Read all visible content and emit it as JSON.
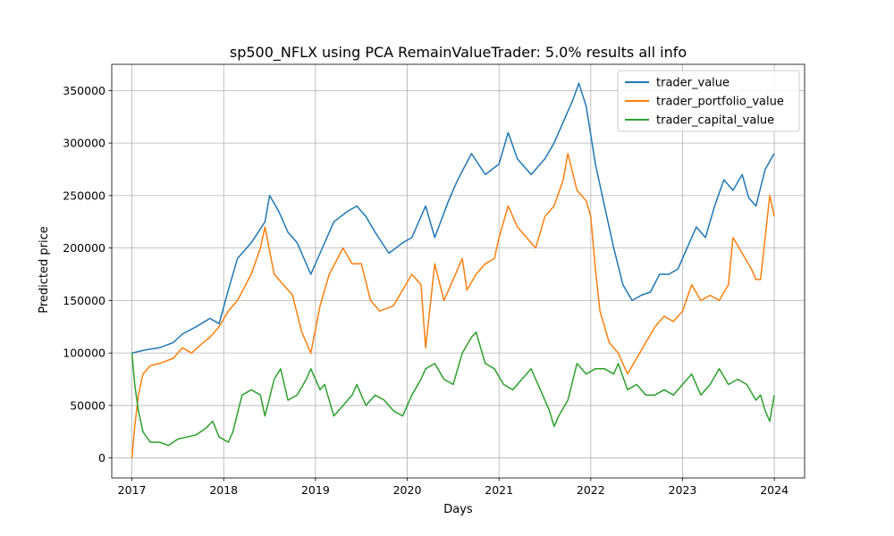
{
  "chart_data": {
    "type": "line",
    "title": "sp500_NFLX using PCA RemainValueTrader: 5.0% results all info",
    "xlabel": "Days",
    "ylabel": "Predicted price",
    "xlim": [
      2016.78,
      2024.33
    ],
    "ylim": [
      -19000,
      375000
    ],
    "xticks": [
      2017,
      2018,
      2019,
      2020,
      2021,
      2022,
      2023,
      2024
    ],
    "xtick_labels": [
      "2017",
      "2018",
      "2019",
      "2020",
      "2021",
      "2022",
      "2023",
      "2024"
    ],
    "yticks": [
      0,
      50000,
      100000,
      150000,
      200000,
      250000,
      300000,
      350000
    ],
    "ytick_labels": [
      "0",
      "50000",
      "100000",
      "150000",
      "200000",
      "250000",
      "300000",
      "350000"
    ],
    "grid": true,
    "legend_position": "top-right",
    "series": [
      {
        "name": "trader_value",
        "color": "#1f77b4",
        "points": [
          [
            2017.0,
            100000
          ],
          [
            2017.15,
            103000
          ],
          [
            2017.3,
            105000
          ],
          [
            2017.45,
            110000
          ],
          [
            2017.55,
            118000
          ],
          [
            2017.7,
            125000
          ],
          [
            2017.85,
            133000
          ],
          [
            2017.95,
            128000
          ],
          [
            2018.05,
            160000
          ],
          [
            2018.15,
            190000
          ],
          [
            2018.3,
            205000
          ],
          [
            2018.45,
            225000
          ],
          [
            2018.5,
            250000
          ],
          [
            2018.6,
            235000
          ],
          [
            2018.7,
            215000
          ],
          [
            2018.8,
            205000
          ],
          [
            2018.95,
            175000
          ],
          [
            2019.05,
            195000
          ],
          [
            2019.2,
            225000
          ],
          [
            2019.35,
            235000
          ],
          [
            2019.45,
            240000
          ],
          [
            2019.55,
            230000
          ],
          [
            2019.65,
            215000
          ],
          [
            2019.8,
            195000
          ],
          [
            2019.95,
            205000
          ],
          [
            2020.05,
            210000
          ],
          [
            2020.2,
            240000
          ],
          [
            2020.3,
            210000
          ],
          [
            2020.45,
            245000
          ],
          [
            2020.55,
            265000
          ],
          [
            2020.7,
            290000
          ],
          [
            2020.85,
            270000
          ],
          [
            2021.0,
            280000
          ],
          [
            2021.1,
            310000
          ],
          [
            2021.2,
            285000
          ],
          [
            2021.35,
            270000
          ],
          [
            2021.5,
            285000
          ],
          [
            2021.6,
            300000
          ],
          [
            2021.7,
            320000
          ],
          [
            2021.8,
            340000
          ],
          [
            2021.87,
            357000
          ],
          [
            2021.95,
            335000
          ],
          [
            2022.05,
            280000
          ],
          [
            2022.15,
            240000
          ],
          [
            2022.25,
            200000
          ],
          [
            2022.35,
            165000
          ],
          [
            2022.45,
            150000
          ],
          [
            2022.55,
            155000
          ],
          [
            2022.65,
            158000
          ],
          [
            2022.75,
            175000
          ],
          [
            2022.85,
            175000
          ],
          [
            2022.95,
            180000
          ],
          [
            2023.05,
            200000
          ],
          [
            2023.15,
            220000
          ],
          [
            2023.25,
            210000
          ],
          [
            2023.35,
            240000
          ],
          [
            2023.45,
            265000
          ],
          [
            2023.55,
            255000
          ],
          [
            2023.65,
            270000
          ],
          [
            2023.72,
            248000
          ],
          [
            2023.8,
            240000
          ],
          [
            2023.9,
            275000
          ],
          [
            2024.0,
            290000
          ]
        ]
      },
      {
        "name": "trader_portfolio_value",
        "color": "#ff7f0e",
        "points": [
          [
            2017.0,
            0
          ],
          [
            2017.03,
            30000
          ],
          [
            2017.07,
            60000
          ],
          [
            2017.12,
            80000
          ],
          [
            2017.2,
            88000
          ],
          [
            2017.3,
            90000
          ],
          [
            2017.45,
            95000
          ],
          [
            2017.55,
            105000
          ],
          [
            2017.65,
            100000
          ],
          [
            2017.75,
            108000
          ],
          [
            2017.85,
            115000
          ],
          [
            2017.95,
            125000
          ],
          [
            2018.05,
            140000
          ],
          [
            2018.15,
            150000
          ],
          [
            2018.3,
            175000
          ],
          [
            2018.4,
            200000
          ],
          [
            2018.45,
            220000
          ],
          [
            2018.55,
            175000
          ],
          [
            2018.65,
            165000
          ],
          [
            2018.75,
            155000
          ],
          [
            2018.85,
            120000
          ],
          [
            2018.95,
            100000
          ],
          [
            2019.05,
            145000
          ],
          [
            2019.15,
            175000
          ],
          [
            2019.3,
            200000
          ],
          [
            2019.4,
            185000
          ],
          [
            2019.5,
            185000
          ],
          [
            2019.6,
            150000
          ],
          [
            2019.7,
            140000
          ],
          [
            2019.85,
            145000
          ],
          [
            2019.95,
            160000
          ],
          [
            2020.05,
            175000
          ],
          [
            2020.15,
            165000
          ],
          [
            2020.2,
            105000
          ],
          [
            2020.3,
            185000
          ],
          [
            2020.4,
            150000
          ],
          [
            2020.5,
            170000
          ],
          [
            2020.6,
            190000
          ],
          [
            2020.65,
            160000
          ],
          [
            2020.75,
            175000
          ],
          [
            2020.85,
            185000
          ],
          [
            2020.95,
            190000
          ],
          [
            2021.0,
            210000
          ],
          [
            2021.1,
            240000
          ],
          [
            2021.2,
            220000
          ],
          [
            2021.3,
            210000
          ],
          [
            2021.4,
            200000
          ],
          [
            2021.5,
            230000
          ],
          [
            2021.6,
            240000
          ],
          [
            2021.7,
            265000
          ],
          [
            2021.75,
            290000
          ],
          [
            2021.85,
            255000
          ],
          [
            2021.95,
            245000
          ],
          [
            2022.0,
            230000
          ],
          [
            2022.05,
            180000
          ],
          [
            2022.1,
            140000
          ],
          [
            2022.2,
            110000
          ],
          [
            2022.3,
            100000
          ],
          [
            2022.4,
            80000
          ],
          [
            2022.5,
            95000
          ],
          [
            2022.6,
            110000
          ],
          [
            2022.7,
            125000
          ],
          [
            2022.8,
            135000
          ],
          [
            2022.9,
            130000
          ],
          [
            2023.0,
            140000
          ],
          [
            2023.1,
            165000
          ],
          [
            2023.2,
            150000
          ],
          [
            2023.3,
            155000
          ],
          [
            2023.4,
            150000
          ],
          [
            2023.5,
            165000
          ],
          [
            2023.55,
            210000
          ],
          [
            2023.65,
            195000
          ],
          [
            2023.75,
            180000
          ],
          [
            2023.8,
            170000
          ],
          [
            2023.85,
            170000
          ],
          [
            2023.9,
            210000
          ],
          [
            2023.95,
            250000
          ],
          [
            2024.0,
            230000
          ]
        ]
      },
      {
        "name": "trader_capital_value",
        "color": "#2ca02c",
        "points": [
          [
            2017.0,
            100000
          ],
          [
            2017.03,
            70000
          ],
          [
            2017.07,
            45000
          ],
          [
            2017.12,
            25000
          ],
          [
            2017.2,
            15000
          ],
          [
            2017.3,
            15000
          ],
          [
            2017.4,
            12000
          ],
          [
            2017.5,
            18000
          ],
          [
            2017.6,
            20000
          ],
          [
            2017.7,
            22000
          ],
          [
            2017.8,
            28000
          ],
          [
            2017.88,
            35000
          ],
          [
            2017.95,
            20000
          ],
          [
            2018.05,
            15000
          ],
          [
            2018.1,
            25000
          ],
          [
            2018.2,
            60000
          ],
          [
            2018.3,
            65000
          ],
          [
            2018.4,
            60000
          ],
          [
            2018.45,
            40000
          ],
          [
            2018.55,
            75000
          ],
          [
            2018.62,
            85000
          ],
          [
            2018.7,
            55000
          ],
          [
            2018.8,
            60000
          ],
          [
            2018.9,
            75000
          ],
          [
            2018.95,
            85000
          ],
          [
            2019.05,
            65000
          ],
          [
            2019.1,
            70000
          ],
          [
            2019.2,
            40000
          ],
          [
            2019.3,
            50000
          ],
          [
            2019.4,
            60000
          ],
          [
            2019.45,
            70000
          ],
          [
            2019.55,
            50000
          ],
          [
            2019.65,
            60000
          ],
          [
            2019.75,
            55000
          ],
          [
            2019.85,
            45000
          ],
          [
            2019.95,
            40000
          ],
          [
            2020.05,
            60000
          ],
          [
            2020.15,
            75000
          ],
          [
            2020.2,
            85000
          ],
          [
            2020.3,
            90000
          ],
          [
            2020.4,
            75000
          ],
          [
            2020.5,
            70000
          ],
          [
            2020.6,
            100000
          ],
          [
            2020.7,
            115000
          ],
          [
            2020.75,
            120000
          ],
          [
            2020.85,
            90000
          ],
          [
            2020.95,
            85000
          ],
          [
            2021.05,
            70000
          ],
          [
            2021.15,
            65000
          ],
          [
            2021.25,
            75000
          ],
          [
            2021.35,
            85000
          ],
          [
            2021.45,
            65000
          ],
          [
            2021.55,
            45000
          ],
          [
            2021.6,
            30000
          ],
          [
            2021.65,
            40000
          ],
          [
            2021.75,
            55000
          ],
          [
            2021.85,
            90000
          ],
          [
            2021.95,
            80000
          ],
          [
            2022.05,
            85000
          ],
          [
            2022.15,
            85000
          ],
          [
            2022.25,
            80000
          ],
          [
            2022.3,
            90000
          ],
          [
            2022.4,
            65000
          ],
          [
            2022.5,
            70000
          ],
          [
            2022.6,
            60000
          ],
          [
            2022.7,
            60000
          ],
          [
            2022.8,
            65000
          ],
          [
            2022.9,
            60000
          ],
          [
            2023.0,
            70000
          ],
          [
            2023.1,
            80000
          ],
          [
            2023.2,
            60000
          ],
          [
            2023.3,
            70000
          ],
          [
            2023.4,
            85000
          ],
          [
            2023.5,
            70000
          ],
          [
            2023.6,
            75000
          ],
          [
            2023.7,
            70000
          ],
          [
            2023.8,
            55000
          ],
          [
            2023.85,
            60000
          ],
          [
            2023.9,
            45000
          ],
          [
            2023.95,
            35000
          ],
          [
            2024.0,
            60000
          ]
        ]
      }
    ]
  }
}
